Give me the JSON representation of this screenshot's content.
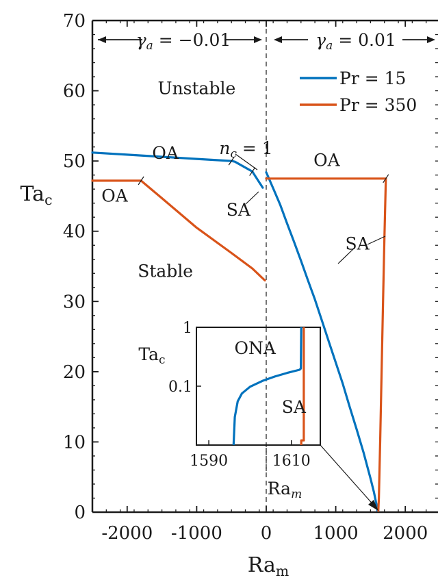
{
  "chart_data": [
    {
      "type": "line",
      "xlabel": "Ra",
      "xlabel_sub": "m",
      "ylabel": "Ta",
      "ylabel_sub": "c",
      "xlim": [
        -2500,
        2500
      ],
      "ylim": [
        0,
        70
      ],
      "xticks": [
        -2000,
        -1000,
        0,
        1000,
        2000
      ],
      "xtick_labels": [
        "-2000",
        "-1000",
        "0",
        "1000",
        "2000"
      ],
      "yticks": [
        0,
        10,
        20,
        30,
        40,
        50,
        60,
        70
      ],
      "ytick_labels": [
        "0",
        "10",
        "20",
        "30",
        "40",
        "50",
        "60",
        "70"
      ],
      "grid": false,
      "legend_position": "top-right",
      "divider_x": 0,
      "regimes": [
        {
          "symbol": "γ",
          "sub": "a",
          "eq": " = −0.01"
        },
        {
          "symbol": "γ",
          "sub": "a",
          "eq": " = 0.01"
        }
      ],
      "series": [
        {
          "name": "Pr = 15",
          "color": "#0072bd",
          "segments": [
            {
              "x": [
                -2500,
                -2000,
                -1500,
                -1000,
                -500,
                -450,
                -200,
                -50
              ],
              "y": [
                51.2,
                50.9,
                50.6,
                50.3,
                50.0,
                49.9,
                48.5,
                46.2
              ]
            },
            {
              "x": [
                0,
                100,
                200,
                300,
                400,
                500,
                600,
                700,
                800,
                900,
                1000,
                1100,
                1200,
                1300,
                1400,
                1500,
                1550,
                1590,
                1600
              ],
              "y": [
                48.4,
                46.1,
                43.8,
                41.1,
                38.5,
                35.8,
                33.0,
                30.3,
                27.3,
                24.3,
                21.3,
                18.3,
                15.0,
                11.8,
                8.5,
                4.8,
                2.8,
                0.9,
                0.2
              ]
            }
          ]
        },
        {
          "name": "Pr = 350",
          "color": "#d95319",
          "segments": [
            {
              "x": [
                -2500,
                -1800
              ],
              "y": [
                47.2,
                47.2
              ]
            },
            {
              "x": [
                -1800,
                -1500,
                -1000,
                -500,
                -200,
                -20
              ],
              "y": [
                47.2,
                44.7,
                40.5,
                36.9,
                34.7,
                33.0
              ]
            },
            {
              "x": [
                0,
                1720
              ],
              "y": [
                47.5,
                47.5
              ]
            },
            {
              "x": [
                1720,
                1700,
                1680,
                1660,
                1640,
                1620,
                1612
              ],
              "y": [
                47.5,
                39.0,
                30.0,
                20.5,
                10.5,
                2.0,
                0.2
              ]
            }
          ]
        }
      ],
      "annotations": [
        {
          "text": "Unstable",
          "x": -1000,
          "y": 59.5
        },
        {
          "text": "Stable",
          "x": -1450,
          "y": 33.5
        },
        {
          "text": "OA",
          "x": -1450,
          "y": 50.3
        },
        {
          "text": "OA",
          "x": -2180,
          "y": 44.2
        },
        {
          "text": "SA",
          "x": -400,
          "y": 42.2
        },
        {
          "text": "n",
          "sub": "c",
          "eq": " = 1",
          "x": -290,
          "y": 51.0
        },
        {
          "text": "OA",
          "x": 870,
          "y": 49.3
        },
        {
          "text": "SA",
          "x": 1310,
          "y": 37.4
        }
      ]
    },
    {
      "type": "line",
      "name": "inset",
      "xlabel": "Ra",
      "xlabel_sub": "m",
      "ylabel": "Ta",
      "ylabel_sub": "c",
      "yscale": "log",
      "xlim": [
        1587,
        1617
      ],
      "ylim": [
        0.01,
        1
      ],
      "xticks": [
        1590,
        1610
      ],
      "xtick_labels": [
        "1590",
        "1610"
      ],
      "yticks": [
        0.1,
        1
      ],
      "ytick_labels": [
        "0.1",
        "1"
      ],
      "series": [
        {
          "name": "Pr = 15",
          "color": "#0072bd",
          "x": [
            1596.0,
            1596.3,
            1597.0,
            1598.0,
            1600.0,
            1603.0,
            1606.0,
            1609.0,
            1612.0,
            1612.3,
            1612.4
          ],
          "y": [
            0.01,
            0.03,
            0.055,
            0.075,
            0.098,
            0.123,
            0.146,
            0.168,
            0.19,
            0.2,
            1.0
          ]
        },
        {
          "name": "Pr = 350",
          "color": "#d95319",
          "x": [
            1612.4,
            1612.4,
            1613.0,
            1613.0
          ],
          "y": [
            0.01,
            0.012,
            0.012,
            1.0
          ]
        }
      ],
      "annotations": [
        {
          "text": "ONA",
          "x": 1601.2,
          "y": 0.35
        },
        {
          "text": "SA",
          "x": 1610.6,
          "y": 0.035
        }
      ]
    }
  ]
}
